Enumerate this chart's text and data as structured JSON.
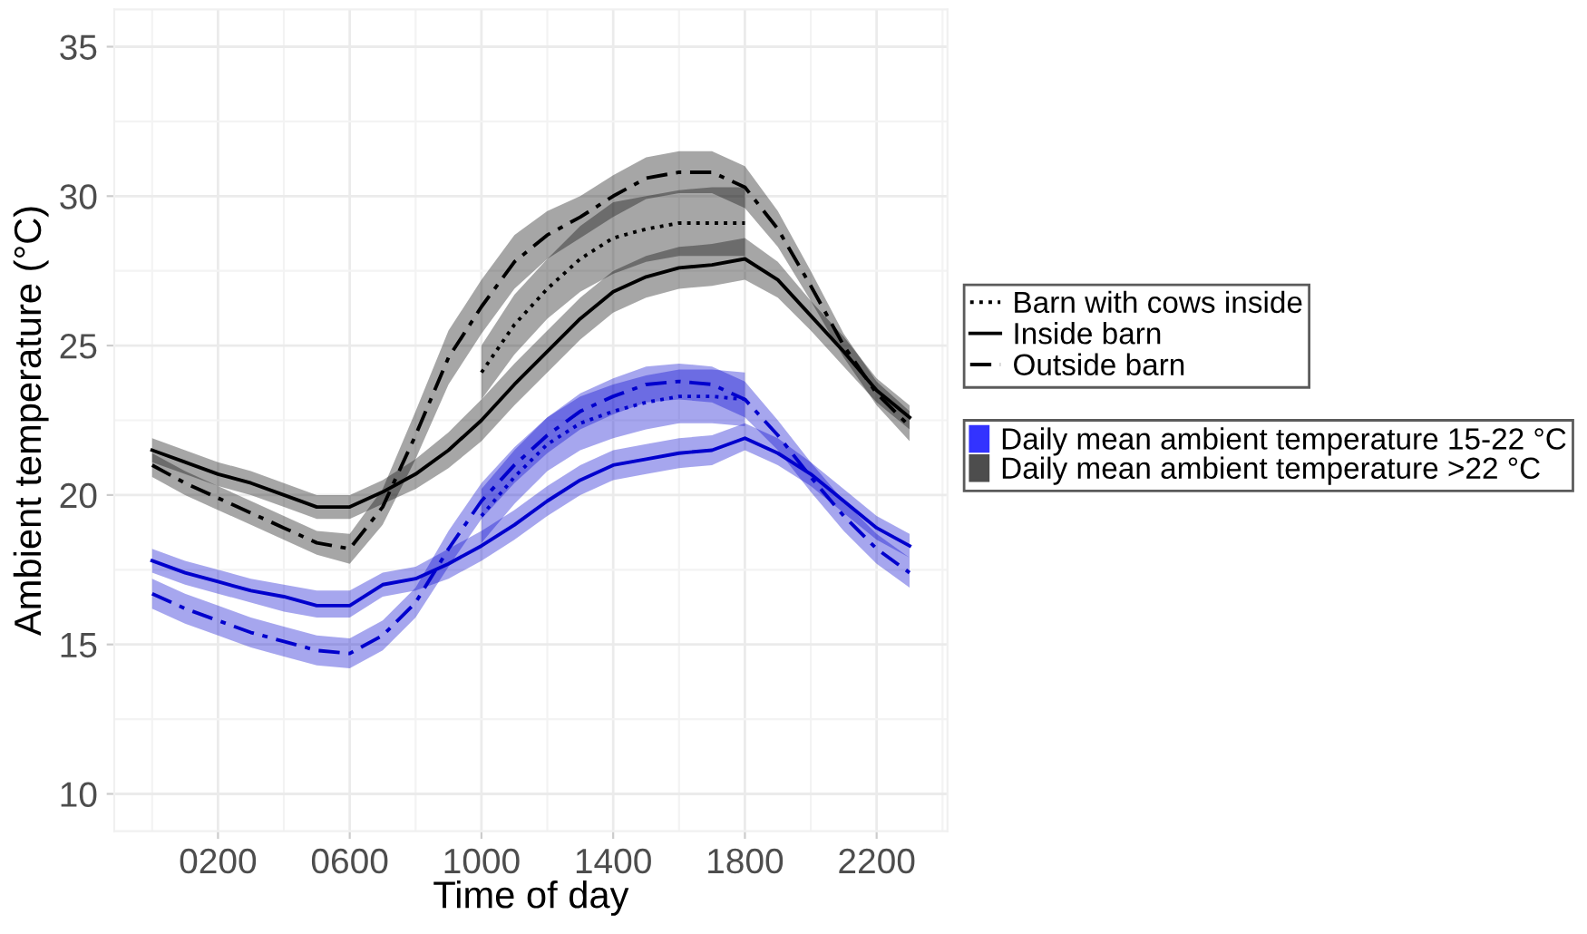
{
  "chart_data": {
    "type": "line",
    "xlabel": "Time of day",
    "ylabel": "Ambient temperature (°C)",
    "xlim": [
      -115,
      2415
    ],
    "ylim": [
      8.75,
      36.25
    ],
    "xticks": [
      {
        "value": 200,
        "label": "0200"
      },
      {
        "value": 600,
        "label": "0600"
      },
      {
        "value": 1000,
        "label": "1000"
      },
      {
        "value": 1400,
        "label": "1400"
      },
      {
        "value": 1800,
        "label": "1800"
      },
      {
        "value": 2200,
        "label": "2200"
      }
    ],
    "yticks": [
      10,
      15,
      20,
      25,
      30,
      35
    ],
    "grid": true,
    "legend": "right",
    "series": [
      {
        "name": "Barn with cows inside",
        "color": "#000000",
        "line_style": "dotted",
        "x": [
          1000,
          1100,
          1200,
          1300,
          1400,
          1500,
          1600,
          1700,
          1800
        ],
        "values": [
          24.1,
          25.7,
          26.9,
          27.9,
          28.6,
          28.9,
          29.1,
          29.1,
          29.1
        ],
        "lower": [
          23.2,
          24.7,
          25.9,
          26.8,
          27.4,
          27.8,
          28.0,
          28.0,
          28.0
        ],
        "upper": [
          25.0,
          26.7,
          27.9,
          29.0,
          29.8,
          30.0,
          30.2,
          30.3,
          30.3
        ]
      },
      {
        "name": "Inside barn",
        "color": "#000000",
        "line_style": "solid",
        "x": [
          0,
          100,
          200,
          300,
          400,
          500,
          600,
          700,
          800,
          900,
          1000,
          1100,
          1200,
          1300,
          1400,
          1500,
          1600,
          1700,
          1800,
          1900,
          2000,
          2100,
          2200,
          2300
        ],
        "values": [
          21.5,
          21.1,
          20.7,
          20.4,
          20.0,
          19.6,
          19.6,
          20.1,
          20.7,
          21.5,
          22.5,
          23.7,
          24.8,
          25.9,
          26.8,
          27.3,
          27.6,
          27.7,
          27.9,
          27.2,
          26.0,
          24.8,
          23.5,
          22.6
        ],
        "lower": [
          21.1,
          20.7,
          20.3,
          20.0,
          19.6,
          19.2,
          19.2,
          19.7,
          20.2,
          20.9,
          21.8,
          23.0,
          24.1,
          25.2,
          26.1,
          26.6,
          26.9,
          27.0,
          27.2,
          26.6,
          25.5,
          24.3,
          23.1,
          22.2
        ],
        "upper": [
          21.9,
          21.5,
          21.1,
          20.8,
          20.4,
          20.0,
          20.0,
          20.5,
          21.2,
          22.1,
          23.2,
          24.4,
          25.5,
          26.6,
          27.5,
          28.0,
          28.3,
          28.4,
          28.6,
          27.8,
          26.5,
          25.3,
          23.9,
          23.0
        ]
      },
      {
        "name": "Outside barn",
        "color": "#000000",
        "line_style": "dashdot",
        "x": [
          0,
          100,
          200,
          300,
          400,
          500,
          600,
          700,
          800,
          900,
          1000,
          1100,
          1200,
          1300,
          1400,
          1500,
          1600,
          1700,
          1800,
          1900,
          2000,
          2100,
          2200,
          2300
        ],
        "values": [
          21.0,
          20.4,
          19.9,
          19.4,
          18.9,
          18.4,
          18.2,
          19.6,
          22.0,
          24.6,
          26.3,
          27.8,
          28.7,
          29.3,
          30.0,
          30.6,
          30.8,
          30.8,
          30.3,
          28.9,
          27.0,
          25.0,
          23.4,
          22.3
        ],
        "lower": [
          20.6,
          20.0,
          19.5,
          19.0,
          18.5,
          18.0,
          17.7,
          19.0,
          21.2,
          23.7,
          25.4,
          26.9,
          27.9,
          28.6,
          29.3,
          29.9,
          30.1,
          30.1,
          29.6,
          28.3,
          26.5,
          24.6,
          23.0,
          21.8
        ],
        "upper": [
          21.4,
          20.8,
          20.3,
          19.8,
          19.3,
          18.8,
          18.7,
          20.2,
          22.8,
          25.5,
          27.2,
          28.7,
          29.5,
          30.0,
          30.7,
          31.3,
          31.5,
          31.5,
          31.0,
          29.5,
          27.5,
          25.4,
          23.8,
          22.8
        ]
      },
      {
        "color": "#0000cd",
        "line_style": "dotted",
        "x": [
          1000,
          1100,
          1200,
          1300,
          1400,
          1500,
          1600,
          1700,
          1800
        ],
        "values": [
          19.3,
          20.6,
          21.7,
          22.4,
          22.8,
          23.1,
          23.3,
          23.3,
          23.2
        ],
        "lower": [
          18.4,
          19.7,
          20.8,
          21.5,
          21.9,
          22.2,
          22.4,
          22.4,
          22.3
        ],
        "upper": [
          20.2,
          21.5,
          22.6,
          23.3,
          23.7,
          24.0,
          24.2,
          24.2,
          24.1
        ]
      },
      {
        "color": "#0000cd",
        "line_style": "solid",
        "x": [
          0,
          100,
          200,
          300,
          400,
          500,
          600,
          700,
          800,
          900,
          1000,
          1100,
          1200,
          1300,
          1400,
          1500,
          1600,
          1700,
          1800,
          1900,
          2000,
          2100,
          2200,
          2300
        ],
        "values": [
          17.8,
          17.4,
          17.1,
          16.8,
          16.6,
          16.3,
          16.3,
          17.0,
          17.2,
          17.7,
          18.3,
          19.0,
          19.8,
          20.5,
          21.0,
          21.2,
          21.4,
          21.5,
          21.9,
          21.4,
          20.7,
          19.8,
          18.9,
          18.3
        ],
        "lower": [
          17.4,
          17.0,
          16.7,
          16.4,
          16.1,
          15.9,
          15.9,
          16.6,
          16.8,
          17.2,
          17.8,
          18.5,
          19.3,
          20.0,
          20.5,
          20.7,
          20.9,
          21.0,
          21.5,
          21.0,
          20.3,
          19.4,
          18.5,
          17.9
        ],
        "upper": [
          18.2,
          17.8,
          17.5,
          17.2,
          17.0,
          16.8,
          16.8,
          17.4,
          17.6,
          18.2,
          18.8,
          19.5,
          20.3,
          21.0,
          21.5,
          21.7,
          21.9,
          22.0,
          22.4,
          21.9,
          21.1,
          20.2,
          19.3,
          18.7
        ]
      },
      {
        "color": "#0000cd",
        "line_style": "dashdot",
        "x": [
          0,
          100,
          200,
          300,
          400,
          500,
          600,
          700,
          800,
          900,
          1000,
          1100,
          1200,
          1300,
          1400,
          1500,
          1600,
          1700,
          1800,
          1900,
          2000,
          2100,
          2200,
          2300
        ],
        "values": [
          16.7,
          16.2,
          15.8,
          15.4,
          15.1,
          14.8,
          14.7,
          15.3,
          16.4,
          18.2,
          19.8,
          21.0,
          22.0,
          22.8,
          23.3,
          23.7,
          23.8,
          23.7,
          23.2,
          22.0,
          20.6,
          19.3,
          18.2,
          17.4
        ],
        "lower": [
          16.2,
          15.7,
          15.3,
          14.9,
          14.6,
          14.3,
          14.2,
          14.8,
          15.9,
          17.6,
          19.2,
          20.4,
          21.4,
          22.2,
          22.7,
          23.1,
          23.2,
          23.1,
          22.6,
          21.5,
          20.1,
          18.8,
          17.7,
          16.9
        ],
        "upper": [
          17.2,
          16.7,
          16.3,
          15.9,
          15.6,
          15.3,
          15.2,
          15.8,
          16.9,
          18.8,
          20.4,
          21.6,
          22.6,
          23.4,
          23.9,
          24.3,
          24.4,
          24.3,
          23.8,
          22.5,
          21.1,
          19.8,
          18.7,
          17.9
        ]
      },
      {
        "type": "area",
        "name": "Daily mean ambient temperature 15-22 °C",
        "color": "#3333ff",
        "values": [
          null
        ]
      },
      {
        "type": "area",
        "name": "Daily mean ambient temperature >22 °C",
        "color": "#4d4d4d",
        "values": [
          null
        ]
      }
    ]
  }
}
